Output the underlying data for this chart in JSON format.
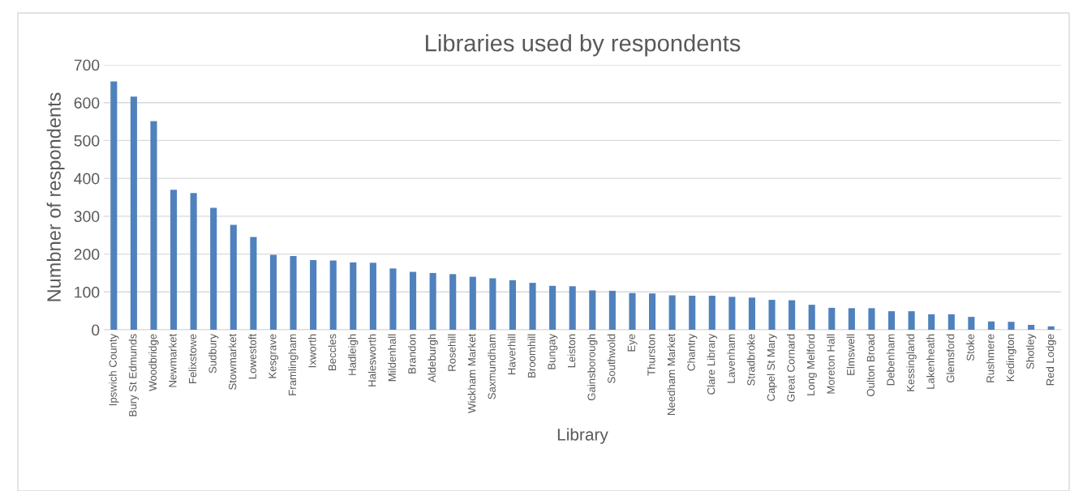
{
  "chart_data": {
    "type": "bar",
    "title": "Libraries used by respondents",
    "xlabel": "Library",
    "ylabel": "Numbner of respondents",
    "categories": [
      "Ipswich County",
      "Bury St Edmunds",
      "Woodbridge",
      "Newmarket",
      "Felixstowe",
      "Sudbury",
      "Stowmarket",
      "Lowestoft",
      "Kesgrave",
      "Framlingham",
      "Ixworth",
      "Beccles",
      "Hadleigh",
      "Halesworth",
      "Mildenhall",
      "Brandon",
      "Aldeburgh",
      "Rosehill",
      "Wickham Market",
      "Saxmundham",
      "Haverhill",
      "Broomhill",
      "Bungay",
      "Leiston",
      "Gainsborough",
      "Southwold",
      "Eye",
      "Thurston",
      "Needham Market",
      "Chantry",
      "Clare Library",
      "Lavenham",
      "Stradbroke",
      "Capel St Mary",
      "Great Cornard",
      "Long Melford",
      "Moreton Hall",
      "Elmswell",
      "Oulton Broad",
      "Debenham",
      "Kessingland",
      "Lakenheath",
      "Glemsford",
      "Stoke",
      "Rushmere",
      "Kedington",
      "Shotley",
      "Red Lodge"
    ],
    "values": [
      656,
      616,
      551,
      370,
      361,
      322,
      277,
      245,
      198,
      195,
      184,
      183,
      178,
      177,
      162,
      153,
      150,
      147,
      140,
      136,
      131,
      124,
      116,
      115,
      104,
      103,
      97,
      96,
      91,
      90,
      90,
      87,
      85,
      79,
      78,
      66,
      58,
      57,
      57,
      49,
      49,
      41,
      41,
      34,
      22,
      21,
      13,
      9
    ],
    "color": "#4f81bd",
    "ylim": [
      0,
      700
    ],
    "yticks": [
      0,
      100,
      200,
      300,
      400,
      500,
      600,
      700
    ],
    "grid": "y",
    "legend": false
  }
}
